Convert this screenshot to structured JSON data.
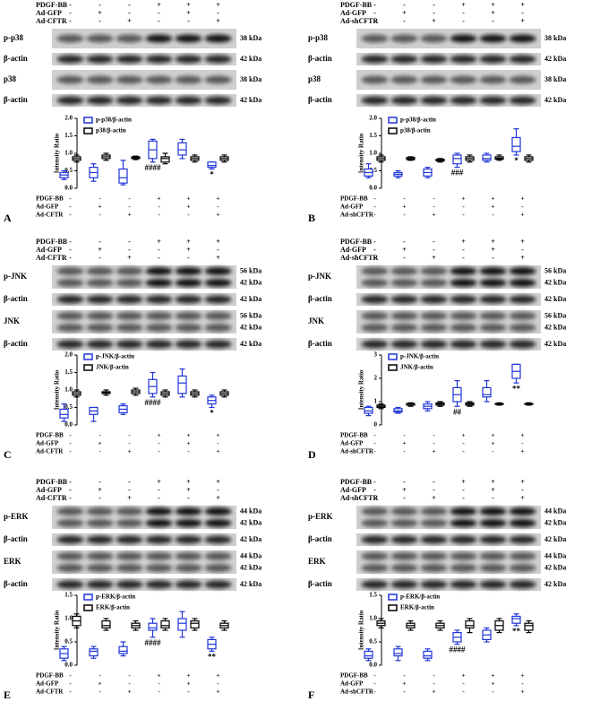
{
  "chart_data": [
    {
      "type": "box",
      "panel_label": "A",
      "treatment_labels": [
        "PDGF-BB",
        "Ad-GFP",
        "Ad-CFTR"
      ],
      "treatment_signs": [
        [
          "-",
          "-",
          "-",
          "+",
          "+",
          "+"
        ],
        [
          "-",
          "+",
          "-",
          "-",
          "+",
          "-"
        ],
        [
          "-",
          "-",
          "+",
          "-",
          "-",
          "+"
        ]
      ],
      "blots": [
        {
          "label": "p-p38",
          "kda": [
            "38 kDa"
          ]
        },
        {
          "label": "β-actin",
          "kda": [
            "42 kDa"
          ]
        },
        {
          "label": "p38",
          "kda": [
            "38 kDa"
          ]
        },
        {
          "label": "β-actin",
          "kda": [
            "42 kDa"
          ]
        }
      ],
      "ylabel": "Intensity Ratio",
      "ylim": [
        0,
        2
      ],
      "yticks": [
        {
          "value": 0,
          "label": "0.0"
        },
        0.5,
        {
          "value": 1,
          "label": "1.0"
        },
        1.5,
        {
          "value": 2,
          "label": "2.0"
        }
      ],
      "series": [
        {
          "name": "p-p38/β-actin",
          "color": "#1f35d8",
          "boxes": [
            [
              0.25,
              0.3,
              0.38,
              0.45,
              0.5
            ],
            [
              0.2,
              0.3,
              0.45,
              0.6,
              0.7
            ],
            [
              0.1,
              0.15,
              0.3,
              0.55,
              0.8
            ],
            [
              0.75,
              0.85,
              1.1,
              1.35,
              1.4
            ],
            [
              0.85,
              0.95,
              1.1,
              1.3,
              1.4
            ],
            [
              0.55,
              0.6,
              0.65,
              0.75,
              0.75
            ]
          ],
          "marks": [
            null,
            null,
            null,
            "####",
            null,
            "*"
          ]
        },
        {
          "name": "p38/β-actin",
          "color": "#000000",
          "boxes": [
            [
              0.75,
              0.8,
              0.85,
              0.9,
              0.95
            ],
            [
              0.8,
              0.85,
              0.9,
              0.95,
              1.0
            ],
            [
              0.82,
              0.85,
              0.87,
              0.9,
              0.92
            ],
            [
              0.7,
              0.75,
              0.85,
              0.9,
              1.0
            ],
            [
              0.75,
              0.8,
              0.85,
              0.9,
              0.95
            ],
            [
              0.75,
              0.8,
              0.85,
              0.9,
              0.95
            ]
          ]
        }
      ]
    },
    {
      "type": "box",
      "panel_label": "B",
      "treatment_labels": [
        "PDGF-BB",
        "Ad-GFP",
        "Ad-shCFTR"
      ],
      "treatment_signs": [
        [
          "-",
          "-",
          "-",
          "+",
          "+",
          "+"
        ],
        [
          "-",
          "+",
          "-",
          "-",
          "+",
          "-"
        ],
        [
          "-",
          "-",
          "+",
          "-",
          "-",
          "+"
        ]
      ],
      "blots": [
        {
          "label": "p-p38",
          "kda": [
            "38 kDa"
          ]
        },
        {
          "label": "β-actin",
          "kda": [
            "42 kDa"
          ]
        },
        {
          "label": "p38",
          "kda": [
            "38 kDa"
          ]
        },
        {
          "label": "β-actin",
          "kda": [
            "42 kDa"
          ]
        }
      ],
      "ylabel": "Intensity Ratio",
      "ylim": [
        0,
        2
      ],
      "yticks": [
        {
          "value": 0,
          "label": "0.0"
        },
        0.5,
        {
          "value": 1,
          "label": "1.0"
        },
        1.5,
        {
          "value": 2,
          "label": "2.0"
        }
      ],
      "series": [
        {
          "name": "p-p38/β-actin",
          "color": "#1f35d8",
          "boxes": [
            [
              0.3,
              0.35,
              0.45,
              0.55,
              0.7
            ],
            [
              0.3,
              0.35,
              0.4,
              0.45,
              0.5
            ],
            [
              0.3,
              0.35,
              0.45,
              0.55,
              0.6
            ],
            [
              0.6,
              0.7,
              0.85,
              0.95,
              1.0
            ],
            [
              0.75,
              0.8,
              0.85,
              0.95,
              1.0
            ],
            [
              0.95,
              1.05,
              1.2,
              1.45,
              1.7
            ]
          ],
          "marks": [
            null,
            null,
            null,
            "###",
            null,
            "*"
          ]
        },
        {
          "name": "p38/β-actin",
          "color": "#000000",
          "boxes": [
            [
              0.75,
              0.8,
              0.85,
              0.9,
              0.95
            ],
            [
              0.8,
              0.82,
              0.85,
              0.88,
              0.9
            ],
            [
              0.75,
              0.78,
              0.8,
              0.83,
              0.85
            ],
            [
              0.75,
              0.8,
              0.85,
              0.9,
              0.95
            ],
            [
              0.8,
              0.83,
              0.86,
              0.9,
              0.95
            ],
            [
              0.75,
              0.8,
              0.85,
              0.9,
              0.95
            ]
          ]
        }
      ]
    },
    {
      "type": "box",
      "panel_label": "C",
      "treatment_labels": [
        "PDGF-BB",
        "Ad-GFP",
        "Ad-CFTR"
      ],
      "treatment_signs": [
        [
          "-",
          "-",
          "-",
          "+",
          "+",
          "+"
        ],
        [
          "-",
          "+",
          "-",
          "-",
          "+",
          "-"
        ],
        [
          "-",
          "-",
          "+",
          "-",
          "-",
          "+"
        ]
      ],
      "blots": [
        {
          "label": "p-JNK",
          "kda": [
            "56 kDa",
            "42 kDa"
          ]
        },
        {
          "label": "β-actin",
          "kda": [
            "42 kDa"
          ]
        },
        {
          "label": "JNK",
          "kda": [
            "56 kDa",
            "42 kDa"
          ]
        },
        {
          "label": "β-actin",
          "kda": [
            "42 kDa"
          ]
        }
      ],
      "ylabel": "Intensity Ratio",
      "ylim": [
        0,
        2
      ],
      "yticks": [
        {
          "value": 0,
          "label": "0.0"
        },
        0.5,
        {
          "value": 1,
          "label": "1.0"
        },
        1.5,
        {
          "value": 2,
          "label": "2.0"
        }
      ],
      "series": [
        {
          "name": "p-JNK/β-actin",
          "color": "#1f35d8",
          "boxes": [
            [
              0.1,
              0.2,
              0.3,
              0.45,
              0.6
            ],
            [
              0.1,
              0.3,
              0.4,
              0.5,
              0.5
            ],
            [
              0.3,
              0.35,
              0.45,
              0.55,
              0.6
            ],
            [
              0.8,
              0.9,
              1.1,
              1.3,
              1.5
            ],
            [
              0.8,
              0.9,
              1.2,
              1.4,
              1.6
            ],
            [
              0.5,
              0.6,
              0.7,
              0.8,
              0.85
            ]
          ],
          "marks": [
            null,
            null,
            null,
            "####",
            null,
            "*"
          ]
        },
        {
          "name": "JNK/β-actin",
          "color": "#000000",
          "boxes": [
            [
              0.8,
              0.85,
              0.9,
              0.95,
              1.0
            ],
            [
              0.85,
              0.9,
              0.92,
              0.95,
              1.0
            ],
            [
              0.85,
              0.9,
              0.95,
              1.0,
              1.05
            ],
            [
              0.8,
              0.85,
              0.9,
              0.95,
              1.0
            ],
            [
              0.8,
              0.85,
              0.9,
              0.95,
              1.0
            ],
            [
              0.8,
              0.85,
              0.9,
              0.95,
              1.0
            ]
          ]
        }
      ]
    },
    {
      "type": "box",
      "panel_label": "D",
      "treatment_labels": [
        "PDGF-BB",
        "Ad-GFP",
        "Ad-shCFTR"
      ],
      "treatment_signs": [
        [
          "-",
          "-",
          "-",
          "+",
          "+",
          "+"
        ],
        [
          "-",
          "+",
          "-",
          "-",
          "+",
          "-"
        ],
        [
          "-",
          "-",
          "+",
          "-",
          "-",
          "+"
        ]
      ],
      "blots": [
        {
          "label": "p-JNK",
          "kda": [
            "56 kDa",
            "42 kDa"
          ]
        },
        {
          "label": "β-actin",
          "kda": [
            "42 kDa"
          ]
        },
        {
          "label": "JNK",
          "kda": [
            "56 kDa",
            "42 kDa"
          ]
        },
        {
          "label": "β-actin",
          "kda": [
            "42 kDa"
          ]
        }
      ],
      "ylabel": "Intensity Ratio",
      "ylim": [
        0,
        3
      ],
      "yticks": [
        0,
        1,
        2,
        3
      ],
      "series": [
        {
          "name": "p-JNK/β-actin",
          "color": "#1f35d8",
          "boxes": [
            [
              0.4,
              0.5,
              0.6,
              0.75,
              0.8
            ],
            [
              0.5,
              0.55,
              0.6,
              0.7,
              0.75
            ],
            [
              0.6,
              0.7,
              0.8,
              0.9,
              1.0
            ],
            [
              0.8,
              1.0,
              1.3,
              1.6,
              1.9
            ],
            [
              1.0,
              1.2,
              1.3,
              1.6,
              1.9
            ],
            [
              1.8,
              2.0,
              2.3,
              2.6,
              2.6
            ]
          ],
          "marks": [
            null,
            null,
            null,
            "##",
            null,
            "**"
          ]
        },
        {
          "name": "JNK/β-actin",
          "color": "#000000",
          "boxes": [
            [
              0.7,
              0.75,
              0.8,
              0.85,
              0.9
            ],
            [
              0.8,
              0.85,
              0.9,
              0.92,
              0.95
            ],
            [
              0.8,
              0.85,
              0.9,
              0.95,
              1.0
            ],
            [
              0.8,
              0.85,
              0.9,
              0.95,
              1.0
            ],
            [
              0.85,
              0.88,
              0.9,
              0.92,
              0.95
            ],
            [
              0.85,
              0.88,
              0.9,
              0.92,
              0.95
            ]
          ]
        }
      ]
    },
    {
      "type": "box",
      "panel_label": "E",
      "treatment_labels": [
        "PDGF-BB",
        "Ad-GFP",
        "Ad-CFTR"
      ],
      "treatment_signs": [
        [
          "-",
          "-",
          "-",
          "+",
          "+",
          "+"
        ],
        [
          "-",
          "+",
          "-",
          "-",
          "+",
          "-"
        ],
        [
          "-",
          "-",
          "+",
          "-",
          "-",
          "+"
        ]
      ],
      "blots": [
        {
          "label": "p-ERK",
          "kda": [
            "44 kDa",
            "42 kDa"
          ]
        },
        {
          "label": "β-actin",
          "kda": [
            "42 kDa"
          ]
        },
        {
          "label": "ERK",
          "kda": [
            "44 kDa",
            "42 kDa"
          ]
        },
        {
          "label": "β-actin",
          "kda": [
            "42 kDa"
          ]
        }
      ],
      "ylabel": "Intensity Ratio",
      "ylim": [
        0,
        1.5
      ],
      "yticks": [
        {
          "value": 0,
          "label": "0.0"
        },
        0.5,
        {
          "value": 1,
          "label": "1.0"
        },
        1.5
      ],
      "series": [
        {
          "name": "p-ERK/β-actin",
          "color": "#1f35d8",
          "boxes": [
            [
              0.1,
              0.15,
              0.25,
              0.35,
              0.4
            ],
            [
              0.15,
              0.2,
              0.3,
              0.35,
              0.4
            ],
            [
              0.2,
              0.25,
              0.3,
              0.4,
              0.5
            ],
            [
              0.6,
              0.75,
              0.8,
              0.9,
              1.0
            ],
            [
              0.6,
              0.75,
              0.9,
              1.0,
              1.15
            ],
            [
              0.3,
              0.35,
              0.45,
              0.55,
              0.6
            ]
          ],
          "marks": [
            null,
            null,
            null,
            "####",
            null,
            "**"
          ]
        },
        {
          "name": "ERK/β-actin",
          "color": "#000000",
          "boxes": [
            [
              0.8,
              0.85,
              0.95,
              1.05,
              1.1
            ],
            [
              0.75,
              0.8,
              0.85,
              0.95,
              1.0
            ],
            [
              0.75,
              0.8,
              0.85,
              0.9,
              0.95
            ],
            [
              0.75,
              0.8,
              0.85,
              0.95,
              1.0
            ],
            [
              0.75,
              0.8,
              0.9,
              0.95,
              1.0
            ],
            [
              0.75,
              0.8,
              0.85,
              0.9,
              0.95
            ]
          ]
        }
      ]
    },
    {
      "type": "box",
      "panel_label": "F",
      "treatment_labels": [
        "PDGF-BB",
        "Ad-GFP",
        "Ad-shCFTR"
      ],
      "treatment_signs": [
        [
          "-",
          "-",
          "-",
          "+",
          "+",
          "+"
        ],
        [
          "-",
          "+",
          "-",
          "-",
          "+",
          "-"
        ],
        [
          "-",
          "-",
          "+",
          "-",
          "-",
          "+"
        ]
      ],
      "blots": [
        {
          "label": "p-ERK",
          "kda": [
            "44 kDa",
            "42 kDa"
          ]
        },
        {
          "label": "β-actin",
          "kda": [
            "42 kDa"
          ]
        },
        {
          "label": "ERK",
          "kda": [
            "44 kDa",
            "42 kDa"
          ]
        },
        {
          "label": "β-actin",
          "kda": [
            "42 kDa"
          ]
        }
      ],
      "ylabel": "Intensity Ratio",
      "ylim": [
        0,
        1.5
      ],
      "yticks": [
        {
          "value": 0,
          "label": "0.0"
        },
        0.5,
        {
          "value": 1,
          "label": "1.0"
        },
        1.5
      ],
      "series": [
        {
          "name": "p-ERK/β-actin",
          "color": "#1f35d8",
          "boxes": [
            [
              0.1,
              0.15,
              0.2,
              0.3,
              0.35
            ],
            [
              0.1,
              0.2,
              0.25,
              0.35,
              0.4
            ],
            [
              0.1,
              0.15,
              0.2,
              0.3,
              0.35
            ],
            [
              0.45,
              0.5,
              0.6,
              0.7,
              0.75
            ],
            [
              0.5,
              0.55,
              0.65,
              0.75,
              0.8
            ],
            [
              0.85,
              0.9,
              1.0,
              1.05,
              1.1
            ]
          ],
          "marks": [
            null,
            null,
            null,
            "####",
            null,
            "**"
          ]
        },
        {
          "name": "ERK/β-actin",
          "color": "#000000",
          "boxes": [
            [
              0.8,
              0.85,
              0.9,
              0.95,
              1.0
            ],
            [
              0.75,
              0.8,
              0.85,
              0.9,
              0.95
            ],
            [
              0.75,
              0.8,
              0.85,
              0.9,
              0.95
            ],
            [
              0.7,
              0.8,
              0.85,
              0.95,
              1.0
            ],
            [
              0.7,
              0.75,
              0.85,
              0.95,
              1.0
            ],
            [
              0.7,
              0.75,
              0.85,
              0.9,
              0.95
            ]
          ]
        }
      ]
    }
  ]
}
